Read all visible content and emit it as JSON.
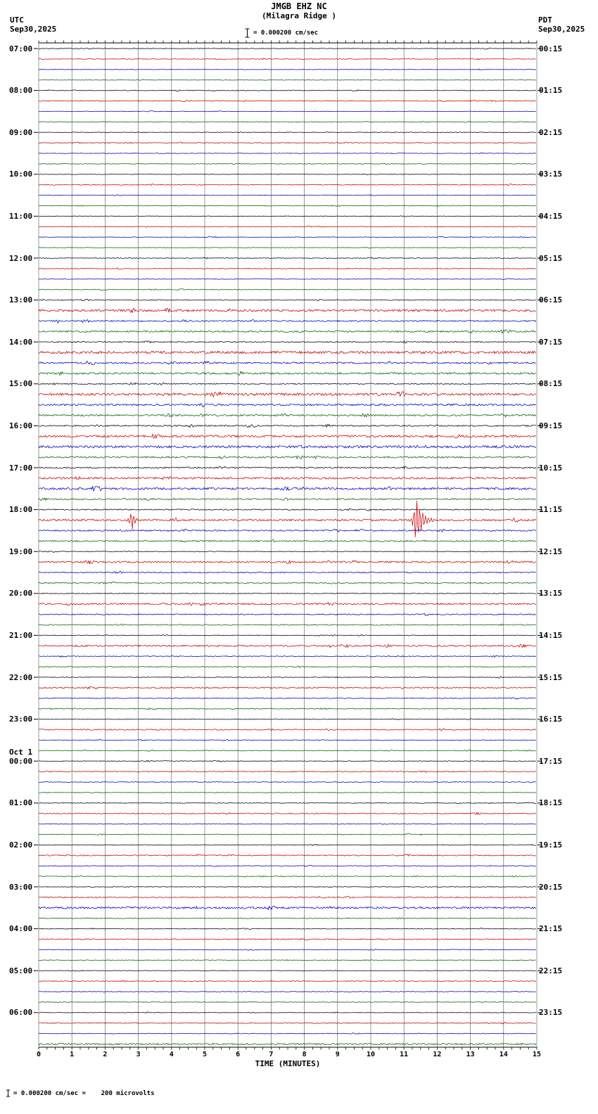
{
  "header": {
    "station": "JMGB EHZ NC",
    "location": "(Milagra Ridge )",
    "left_tz": "UTC",
    "left_date": "Sep30,2025",
    "right_tz": "PDT",
    "right_date": "Sep30,2025",
    "scale_note": "= 0.000200 cm/sec"
  },
  "footer": {
    "note": "= 0.000200 cm/sec =    200 microvolts"
  },
  "x_axis": {
    "label": "TIME (MINUTES)",
    "ticks": [
      0,
      1,
      2,
      3,
      4,
      5,
      6,
      7,
      8,
      9,
      10,
      11,
      12,
      13,
      14,
      15
    ]
  },
  "chart_data": {
    "type": "line",
    "subtype": "helicorder-seismogram",
    "minutes_per_line": 15,
    "x_range_minutes": [
      0,
      15
    ],
    "rows": 96,
    "trace_colors": [
      "#000000",
      "#cc0000",
      "#0000bb",
      "#006400"
    ],
    "utc_hour_labels": [
      {
        "label": "07:00",
        "row": 0
      },
      {
        "label": "08:00",
        "row": 4
      },
      {
        "label": "09:00",
        "row": 8
      },
      {
        "label": "10:00",
        "row": 12
      },
      {
        "label": "11:00",
        "row": 16
      },
      {
        "label": "12:00",
        "row": 20
      },
      {
        "label": "13:00",
        "row": 24
      },
      {
        "label": "14:00",
        "row": 28
      },
      {
        "label": "15:00",
        "row": 32
      },
      {
        "label": "16:00",
        "row": 36
      },
      {
        "label": "17:00",
        "row": 40
      },
      {
        "label": "18:00",
        "row": 44
      },
      {
        "label": "19:00",
        "row": 48
      },
      {
        "label": "20:00",
        "row": 52
      },
      {
        "label": "21:00",
        "row": 56
      },
      {
        "label": "22:00",
        "row": 60
      },
      {
        "label": "23:00",
        "row": 64
      },
      {
        "label": "00:00",
        "row": 68,
        "prefix": "Oct 1"
      },
      {
        "label": "01:00",
        "row": 72
      },
      {
        "label": "02:00",
        "row": 76
      },
      {
        "label": "03:00",
        "row": 80
      },
      {
        "label": "04:00",
        "row": 84
      },
      {
        "label": "05:00",
        "row": 88
      },
      {
        "label": "06:00",
        "row": 92
      }
    ],
    "pdt_hour_labels": [
      {
        "label": "00:15",
        "row": 0
      },
      {
        "label": "01:15",
        "row": 4
      },
      {
        "label": "02:15",
        "row": 8
      },
      {
        "label": "03:15",
        "row": 12
      },
      {
        "label": "04:15",
        "row": 16
      },
      {
        "label": "05:15",
        "row": 20
      },
      {
        "label": "06:15",
        "row": 24
      },
      {
        "label": "07:15",
        "row": 28
      },
      {
        "label": "08:15",
        "row": 32
      },
      {
        "label": "09:15",
        "row": 36
      },
      {
        "label": "10:15",
        "row": 40
      },
      {
        "label": "11:15",
        "row": 44
      },
      {
        "label": "12:15",
        "row": 48
      },
      {
        "label": "13:15",
        "row": 52
      },
      {
        "label": "14:15",
        "row": 56
      },
      {
        "label": "15:15",
        "row": 60
      },
      {
        "label": "16:15",
        "row": 64
      },
      {
        "label": "17:15",
        "row": 68
      },
      {
        "label": "18:15",
        "row": 72
      },
      {
        "label": "19:15",
        "row": 76
      },
      {
        "label": "20:15",
        "row": 80
      },
      {
        "label": "21:15",
        "row": 84
      },
      {
        "label": "22:15",
        "row": 88
      },
      {
        "label": "23:15",
        "row": 92
      }
    ],
    "amplitudes": [
      0.5,
      0.5,
      0.4,
      0.4,
      0.5,
      0.6,
      0.4,
      0.5,
      0.5,
      0.5,
      0.4,
      0.5,
      0.4,
      0.6,
      0.4,
      0.5,
      0.4,
      0.5,
      0.4,
      0.4,
      0.5,
      0.6,
      0.4,
      0.5,
      0.6,
      1.6,
      1.0,
      1.2,
      0.8,
      1.8,
      1.2,
      1.4,
      0.8,
      1.8,
      1.4,
      1.2,
      1.0,
      1.6,
      1.8,
      1.2,
      1.0,
      1.4,
      1.6,
      1.0,
      0.8,
      1.4,
      1.0,
      1.0,
      0.6,
      1.2,
      0.8,
      0.8,
      0.6,
      1.2,
      0.8,
      0.7,
      0.5,
      1.2,
      0.6,
      0.6,
      0.5,
      0.9,
      0.6,
      0.6,
      0.5,
      0.8,
      0.5,
      0.5,
      0.5,
      0.7,
      0.5,
      0.5,
      0.5,
      0.7,
      0.5,
      0.5,
      0.5,
      0.8,
      0.5,
      0.5,
      0.5,
      0.7,
      1.4,
      0.6,
      0.5,
      0.7,
      0.5,
      0.5,
      0.4,
      0.6,
      0.5,
      0.5,
      0.4,
      0.6,
      0.5,
      1.2
    ],
    "events": [
      {
        "row": 45,
        "minute": 2.8,
        "peak": 15,
        "decay": 5,
        "note": "red trace spike, 18:15 UTC segment"
      },
      {
        "row": 45,
        "minute": 11.35,
        "peak": 34,
        "decay": 9,
        "note": "large red trace spike, 18:15 UTC segment"
      },
      {
        "row": 33,
        "minute": 5.2,
        "peak": 4,
        "decay": 2,
        "note": "minor blip 15:15 segment"
      },
      {
        "row": 26,
        "minute": 0.6,
        "peak": 3,
        "decay": 2,
        "note": "minor blip 13:30 segment"
      }
    ]
  }
}
